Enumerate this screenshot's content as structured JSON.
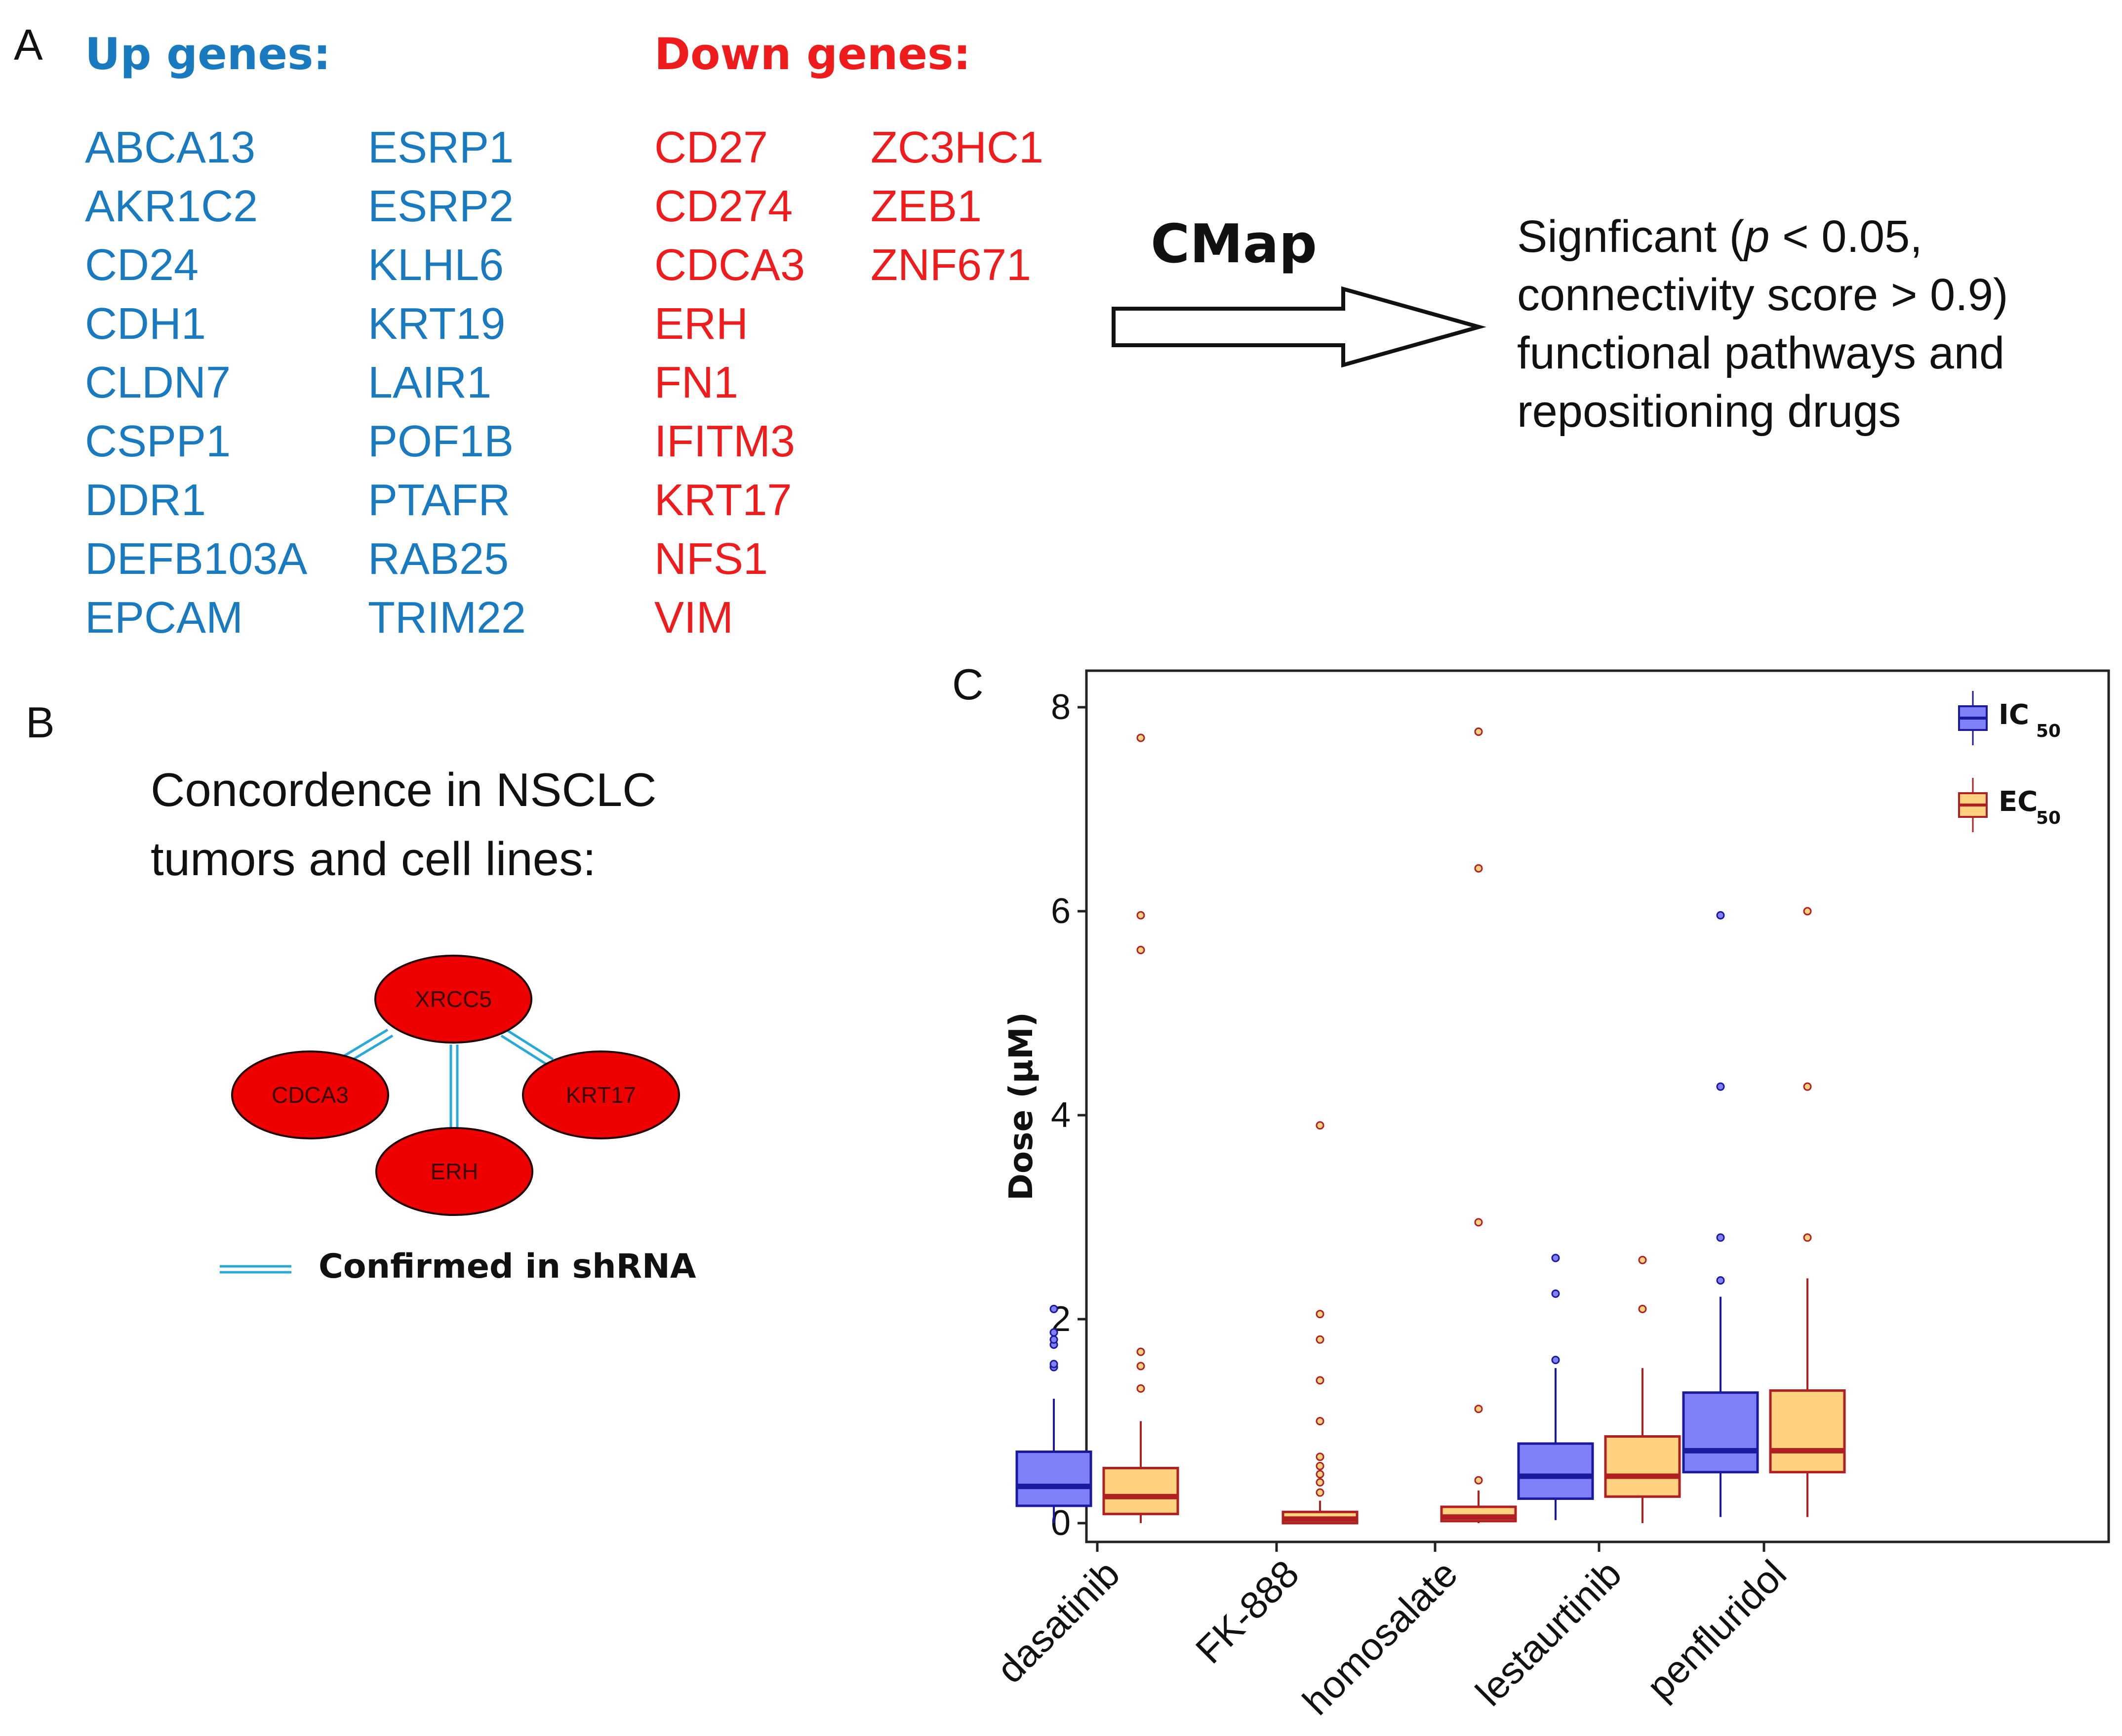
{
  "panel_a": {
    "letter": "A",
    "up_header": "Up genes:",
    "down_header": "Down genes:",
    "up_col1": [
      "ABCA13",
      "AKR1C2",
      "CD24",
      "CDH1",
      "CLDN7",
      "CSPP1",
      "DDR1",
      "DEFB103A",
      "EPCAM"
    ],
    "up_col2": [
      "ESRP1",
      "ESRP2",
      "KLHL6",
      "KRT19",
      "LAIR1",
      "POF1B",
      "PTAFR",
      "RAB25",
      "TRIM22"
    ],
    "down_col1": [
      "CD27",
      "CD274",
      "CDCA3",
      "ERH",
      "FN1",
      "IFITM3",
      "KRT17",
      "NFS1",
      "VIM"
    ],
    "down_col2": [
      "ZC3HC1",
      "ZEB1",
      "ZNF671"
    ],
    "arrow_label": "CMap",
    "result_line1_pre": "Signficant (",
    "result_p": "p",
    "result_line1_post": " < 0.05,",
    "result_line2": "connectivity score > 0.9)",
    "result_line3": "functional pathways and",
    "result_line4": "repositioning drugs",
    "colors": {
      "up": "#1a7abf",
      "down": "#ee1c1c"
    }
  },
  "panel_b": {
    "letter": "B",
    "title_line1": "Concordence in NSCLC",
    "title_line2": "tumors and cell lines:",
    "nodes": {
      "top": "XRCC5",
      "left": "CDCA3",
      "bottom": "ERH",
      "right": "KRT17"
    },
    "legend": "Confirmed in shRNA",
    "node_color": "#ee0000",
    "edge_color": "#2aa8d8"
  },
  "panel_c": {
    "letter": "C",
    "chart_data": {
      "type": "box",
      "ylabel": "Dose (μM)",
      "ylim": [
        0,
        8
      ],
      "yticks": [
        "0",
        "2",
        "4",
        "6",
        "8"
      ],
      "categories": [
        "dasatinib",
        "FK-888",
        "homosalate",
        "lestaurtinib",
        "penfluridol"
      ],
      "legend": [
        {
          "name": "IC",
          "sub": "50",
          "fill": "#8080f8",
          "stroke": "#1a1a9e"
        },
        {
          "name": "EC",
          "sub": "50",
          "fill": "#ffd280",
          "stroke": "#b02020"
        }
      ],
      "series": [
        {
          "name": "IC50",
          "boxes": [
            {
              "category": "dasatinib",
              "min": 0.0,
              "q1": 0.17,
              "median": 0.36,
              "q3": 0.7,
              "max": 1.22,
              "outliers": [
                1.53,
                1.56,
                1.75,
                1.8,
                1.87,
                2.1
              ]
            },
            null,
            null,
            {
              "category": "lestaurtinib",
              "min": 0.03,
              "q1": 0.24,
              "median": 0.46,
              "q3": 0.78,
              "max": 1.52,
              "outliers": [
                1.6,
                2.25,
                2.6
              ]
            },
            {
              "category": "penfluridol",
              "min": 0.06,
              "q1": 0.5,
              "median": 0.71,
              "q3": 1.28,
              "max": 2.22,
              "outliers": [
                2.38,
                2.8,
                4.28,
                5.96
              ]
            }
          ]
        },
        {
          "name": "EC50",
          "boxes": [
            {
              "category": "dasatinib",
              "min": 0.0,
              "q1": 0.09,
              "median": 0.26,
              "q3": 0.54,
              "max": 1.0,
              "outliers": [
                1.32,
                1.54,
                1.68,
                5.62,
                5.96,
                7.7
              ]
            },
            {
              "category": "FK-888",
              "min": 0.0,
              "q1": 0.0,
              "median": 0.04,
              "q3": 0.11,
              "max": 0.22,
              "outliers": [
                0.3,
                0.4,
                0.48,
                0.56,
                0.65,
                1.0,
                1.4,
                1.8,
                2.05,
                3.9
              ]
            },
            {
              "category": "homosalate",
              "min": 0.0,
              "q1": 0.02,
              "median": 0.06,
              "q3": 0.16,
              "max": 0.32,
              "outliers": [
                0.42,
                1.12,
                2.95,
                6.42,
                7.76
              ]
            },
            {
              "category": "lestaurtinib",
              "min": 0.0,
              "q1": 0.26,
              "median": 0.46,
              "q3": 0.85,
              "max": 1.52,
              "outliers": [
                2.1,
                2.58
              ]
            },
            {
              "category": "penfluridol",
              "min": 0.06,
              "q1": 0.5,
              "median": 0.71,
              "q3": 1.3,
              "max": 2.4,
              "outliers": [
                2.8,
                4.28,
                6.0
              ]
            }
          ]
        }
      ]
    }
  }
}
